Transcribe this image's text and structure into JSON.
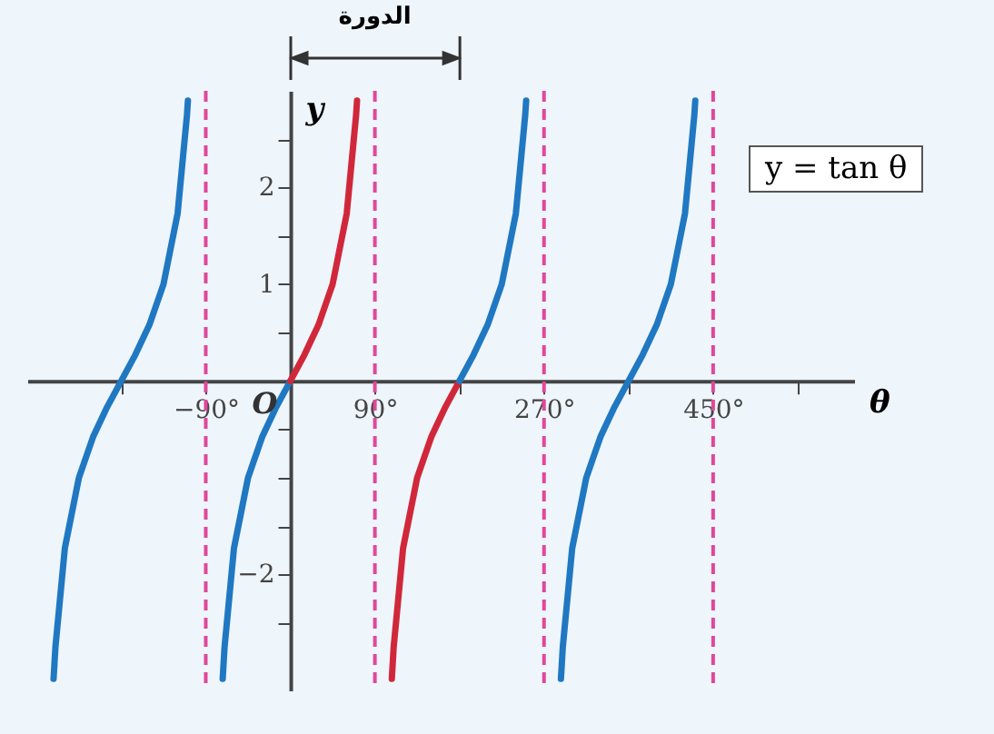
{
  "chart_data": {
    "type": "line",
    "annotations": [
      "y = tan θ",
      "الدورة",
      {
        "text": "O",
        "x": 0,
        "y": 0
      }
    ],
    "xlabel": "θ",
    "ylabel": "y",
    "xlim": [
      -280,
      600
    ],
    "ylim": [
      -3.2,
      3.0
    ],
    "xticks": [
      {
        "value": -180,
        "label": null
      },
      {
        "value": -90,
        "label": "−90°"
      },
      {
        "value": 90,
        "label": "90°"
      },
      {
        "value": 180,
        "label": null
      },
      {
        "value": 270,
        "label": "270°"
      },
      {
        "value": 360,
        "label": null
      },
      {
        "value": 450,
        "label": "450°"
      },
      {
        "value": 540,
        "label": null
      }
    ],
    "yticks": [
      {
        "value": -2.5,
        "label": null
      },
      {
        "value": -2,
        "label": "−2"
      },
      {
        "value": -1.5,
        "label": null
      },
      {
        "value": -1,
        "label": null
      },
      {
        "value": -0.5,
        "label": null
      },
      {
        "value": 0.5,
        "label": null
      },
      {
        "value": 1,
        "label": "1"
      },
      {
        "value": 1.5,
        "label": null
      },
      {
        "value": 2,
        "label": "2"
      },
      {
        "value": 2.5,
        "label": null
      }
    ],
    "grid": false,
    "marker": "none",
    "line_style": "solid",
    "ref_lines": [
      {
        "axis": "x",
        "value": -90,
        "color": "#e0489a",
        "line_style": "dashed"
      },
      {
        "axis": "x",
        "value": 90,
        "color": "#e0489a",
        "line_style": "dashed"
      },
      {
        "axis": "x",
        "value": 270,
        "color": "#e0489a",
        "line_style": "dashed"
      },
      {
        "axis": "x",
        "value": 450,
        "color": "#e0489a",
        "line_style": "dashed"
      }
    ],
    "series": [
      {
        "color": "#1f78c1",
        "x": [
          -252,
          -250,
          -240,
          -225,
          -210,
          -195,
          -180,
          -165,
          -150,
          -135,
          -120,
          -110,
          -109
        ],
        "values": [
          -3.08,
          -2.75,
          -1.73,
          -1,
          -0.58,
          -0.27,
          0,
          0.27,
          0.58,
          1,
          1.73,
          2.75,
          2.9
        ]
      },
      {
        "color": "#1f78c1",
        "x": [
          -72,
          -70,
          -60,
          -45,
          -30,
          -15,
          0
        ],
        "values": [
          -3.08,
          -2.75,
          -1.73,
          -1,
          -0.58,
          -0.27,
          0
        ]
      },
      {
        "color": "#d0283a",
        "x": [
          0,
          15,
          30,
          45,
          60,
          70,
          71
        ],
        "values": [
          0,
          0.27,
          0.58,
          1,
          1.73,
          2.75,
          2.9
        ]
      },
      {
        "color": "#d0283a",
        "x": [
          108,
          110,
          120,
          135,
          150,
          165,
          180
        ],
        "values": [
          -3.08,
          -2.75,
          -1.73,
          -1,
          -0.58,
          -0.27,
          0
        ]
      },
      {
        "color": "#1f78c1",
        "x": [
          180,
          195,
          210,
          225,
          240,
          250,
          251
        ],
        "values": [
          0,
          0.27,
          0.58,
          1,
          1.73,
          2.75,
          2.9
        ]
      },
      {
        "color": "#1f78c1",
        "x": [
          288,
          290,
          300,
          315,
          330,
          345,
          360,
          375,
          390,
          405,
          420,
          430,
          431
        ],
        "values": [
          -3.08,
          -2.75,
          -1.73,
          -1,
          -0.58,
          -0.27,
          0,
          0.27,
          0.58,
          1,
          1.73,
          2.75,
          2.9
        ]
      }
    ]
  }
}
